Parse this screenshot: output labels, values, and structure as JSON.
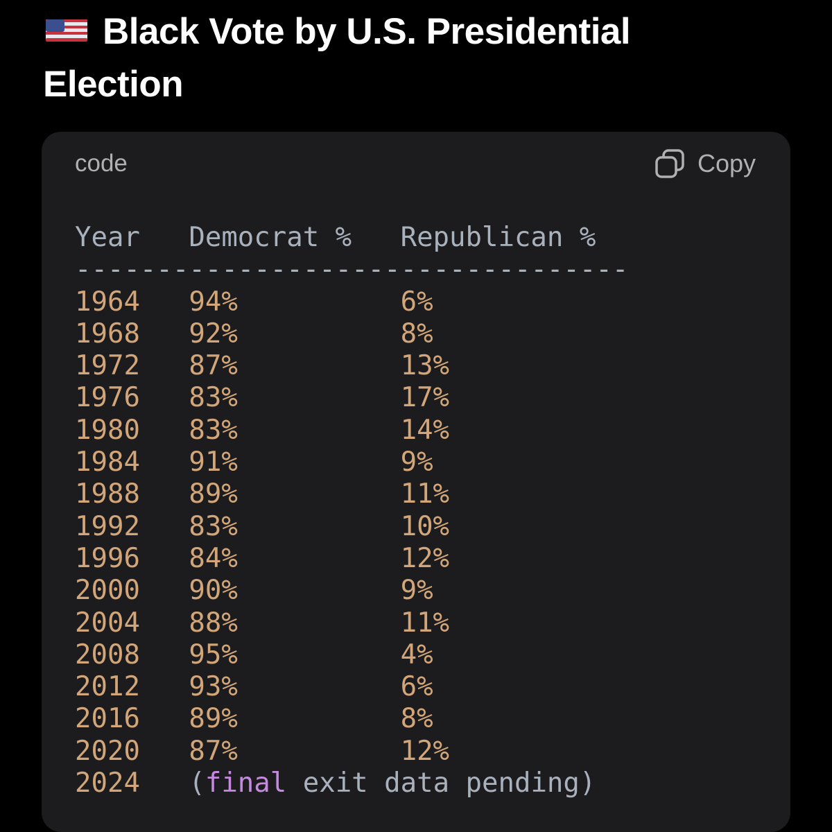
{
  "header": {
    "title": "Black Vote by U.S. Presidential Election"
  },
  "code_block": {
    "language": "code",
    "copy_label": "Copy",
    "columns": [
      "Year",
      "Democrat %",
      "Republican %"
    ],
    "divider": "----------------------------------",
    "rows": [
      [
        "1964",
        "94%",
        "6%"
      ],
      [
        "1968",
        "92%",
        "8%"
      ],
      [
        "1972",
        "87%",
        "13%"
      ],
      [
        "1976",
        "83%",
        "17%"
      ],
      [
        "1980",
        "83%",
        "14%"
      ],
      [
        "1984",
        "91%",
        "9%"
      ],
      [
        "1988",
        "89%",
        "11%"
      ],
      [
        "1992",
        "83%",
        "10%"
      ],
      [
        "1996",
        "84%",
        "12%"
      ],
      [
        "2000",
        "90%",
        "9%"
      ],
      [
        "2004",
        "88%",
        "11%"
      ],
      [
        "2008",
        "95%",
        "4%"
      ],
      [
        "2012",
        "93%",
        "6%"
      ],
      [
        "2016",
        "89%",
        "8%"
      ],
      [
        "2020",
        "87%",
        "12%"
      ]
    ],
    "last_row": {
      "year": "2024",
      "note": [
        "(",
        "final",
        " exit data pending)"
      ]
    }
  }
}
